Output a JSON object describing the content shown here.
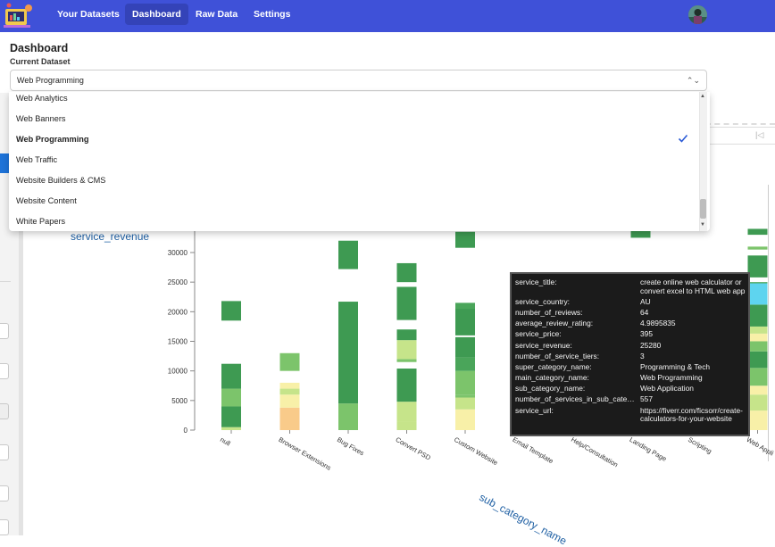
{
  "nav": {
    "items": [
      {
        "label": "Your Datasets",
        "active": false
      },
      {
        "label": "Dashboard",
        "active": true
      },
      {
        "label": "Raw Data",
        "active": false
      },
      {
        "label": "Settings",
        "active": false
      }
    ],
    "logo_icon": "app-logo-icon",
    "avatar_icon": "user-avatar-icon",
    "colors": {
      "navbar": "#3f51d8",
      "active_item": "#3443b8"
    }
  },
  "page": {
    "title": "Dashboard",
    "dataset_label": "Current Dataset",
    "dataset_value": "Web Programming"
  },
  "dropdown": {
    "options": [
      "Web Analytics",
      "Web Banners",
      "Web Programming",
      "Web Traffic",
      "Website Builders & CMS",
      "Website Content",
      "White Papers"
    ],
    "selected": "Web Programming",
    "selected_icon": "checkmark-icon"
  },
  "right_panel": {
    "collapse_icon": "collapse-left-icon",
    "collapse_glyph": "|◁"
  },
  "chart_data": {
    "type": "bar",
    "stacked": true,
    "xlabel": "sub_category_name",
    "ylabel": "service_revenue",
    "ylim": [
      0,
      34000
    ],
    "yticks": [
      0,
      5000,
      10000,
      15000,
      20000,
      25000,
      30000
    ],
    "categories": [
      "null",
      "Browser Extensions",
      "Bug Fixes",
      "Convert PSD",
      "Custom Website",
      "Email Template",
      "Help/Consultation",
      "Landing Page",
      "Scripting",
      "Web Appli"
    ],
    "colors": [
      "#3e9a52",
      "#4aa55a",
      "#7cc46b",
      "#c6e48a",
      "#f8f0a8",
      "#f9cb8a",
      "#5ed4ef"
    ],
    "segments": [
      {
        "category": "null",
        "from": 0,
        "to": 500,
        "color": "#c6e48a"
      },
      {
        "category": "null",
        "from": 500,
        "to": 4000,
        "color": "#3e9a52"
      },
      {
        "category": "null",
        "from": 4000,
        "to": 7000,
        "color": "#7cc46b"
      },
      {
        "category": "null",
        "from": 7000,
        "to": 11200,
        "color": "#3e9a52"
      },
      {
        "category": "null",
        "from": 18500,
        "to": 21800,
        "color": "#3e9a52"
      },
      {
        "category": "Browser Extensions",
        "from": 0,
        "to": 3800,
        "color": "#f9cb8a"
      },
      {
        "category": "Browser Extensions",
        "from": 3800,
        "to": 6000,
        "color": "#f8f0a8"
      },
      {
        "category": "Browser Extensions",
        "from": 6000,
        "to": 7000,
        "color": "#c6e48a"
      },
      {
        "category": "Browser Extensions",
        "from": 7000,
        "to": 8000,
        "color": "#f8f0a8"
      },
      {
        "category": "Browser Extensions",
        "from": 10000,
        "to": 13000,
        "color": "#7cc46b"
      },
      {
        "category": "Bug Fixes",
        "from": 0,
        "to": 4500,
        "color": "#7cc46b"
      },
      {
        "category": "Bug Fixes",
        "from": 4500,
        "to": 21700,
        "color": "#3e9a52"
      },
      {
        "category": "Bug Fixes",
        "from": 27200,
        "to": 32000,
        "color": "#3e9a52"
      },
      {
        "category": "Convert PSD",
        "from": 0,
        "to": 1500,
        "color": "#c6e48a"
      },
      {
        "category": "Convert PSD",
        "from": 1500,
        "to": 4800,
        "color": "#c6e48a"
      },
      {
        "category": "Convert PSD",
        "from": 4800,
        "to": 10400,
        "color": "#3e9a52"
      },
      {
        "category": "Convert PSD",
        "from": 11500,
        "to": 12000,
        "color": "#7cc46b"
      },
      {
        "category": "Convert PSD",
        "from": 12000,
        "to": 15200,
        "color": "#c6e48a"
      },
      {
        "category": "Convert PSD",
        "from": 15200,
        "to": 17000,
        "color": "#3e9a52"
      },
      {
        "category": "Convert PSD",
        "from": 18600,
        "to": 24200,
        "color": "#3e9a52"
      },
      {
        "category": "Convert PSD",
        "from": 25000,
        "to": 28200,
        "color": "#3e9a52"
      },
      {
        "category": "Custom Website",
        "from": 0,
        "to": 3500,
        "color": "#f8f0a8"
      },
      {
        "category": "Custom Website",
        "from": 3500,
        "to": 5500,
        "color": "#c6e48a"
      },
      {
        "category": "Custom Website",
        "from": 5500,
        "to": 6000,
        "color": "#7cc46b"
      },
      {
        "category": "Custom Website",
        "from": 6000,
        "to": 10000,
        "color": "#7cc46b"
      },
      {
        "category": "Custom Website",
        "from": 10000,
        "to": 12300,
        "color": "#4aa55a"
      },
      {
        "category": "Custom Website",
        "from": 12300,
        "to": 15700,
        "color": "#3e9a52"
      },
      {
        "category": "Custom Website",
        "from": 16000,
        "to": 20500,
        "color": "#3e9a52"
      },
      {
        "category": "Custom Website",
        "from": 20500,
        "to": 21500,
        "color": "#4aa55a"
      },
      {
        "category": "Custom Website",
        "from": 30800,
        "to": 33500,
        "color": "#3e9a52"
      },
      {
        "category": "Landing Page",
        "from": 32500,
        "to": 34000,
        "color": "#3e9a52"
      },
      {
        "category": "Web Appli",
        "from": 0,
        "to": 3300,
        "color": "#f8f0a8"
      },
      {
        "category": "Web Appli",
        "from": 3300,
        "to": 6000,
        "color": "#c6e48a"
      },
      {
        "category": "Web Appli",
        "from": 6000,
        "to": 7500,
        "color": "#f8f0a8"
      },
      {
        "category": "Web Appli",
        "from": 7500,
        "to": 10500,
        "color": "#7cc46b"
      },
      {
        "category": "Web Appli",
        "from": 10500,
        "to": 13300,
        "color": "#3e9a52"
      },
      {
        "category": "Web Appli",
        "from": 13300,
        "to": 15000,
        "color": "#7cc46b"
      },
      {
        "category": "Web Appli",
        "from": 15000,
        "to": 16300,
        "color": "#f8f0a8"
      },
      {
        "category": "Web Appli",
        "from": 16300,
        "to": 17500,
        "color": "#c6e48a"
      },
      {
        "category": "Web Appli",
        "from": 17500,
        "to": 21200,
        "color": "#3e9a52"
      },
      {
        "category": "Web Appli",
        "from": 21200,
        "to": 24800,
        "color": "#5ed4ef"
      },
      {
        "category": "Web Appli",
        "from": 24800,
        "to": 25000,
        "color": "#4aa55a"
      },
      {
        "category": "Web Appli",
        "from": 25800,
        "to": 29500,
        "color": "#3e9a52"
      },
      {
        "category": "Web Appli",
        "from": 30500,
        "to": 31000,
        "color": "#7cc46b"
      },
      {
        "category": "Web Appli",
        "from": 33000,
        "to": 34000,
        "color": "#3e9a52"
      }
    ]
  },
  "tooltip": {
    "rows": [
      {
        "key": "service_title:",
        "value": "create online web calculator or convert excel to HTML web app"
      },
      {
        "key": "service_country:",
        "value": "AU"
      },
      {
        "key": "number_of_reviews:",
        "value": "64"
      },
      {
        "key": "average_review_rating:",
        "value": "4.9895835"
      },
      {
        "key": "service_price:",
        "value": "395"
      },
      {
        "key": "service_revenue:",
        "value": "25280"
      },
      {
        "key": "number_of_service_tiers:",
        "value": "3"
      },
      {
        "key": "super_category_name:",
        "value": "Programming & Tech"
      },
      {
        "key": "main_category_name:",
        "value": "Web Programming"
      },
      {
        "key": "sub_category_name:",
        "value": "Web Application"
      },
      {
        "key": "number_of_services_in_sub_cate…",
        "value": "557"
      },
      {
        "key": "service_url:",
        "value": "https://fiverr.com/ficsorr/create-calculators-for-your-website"
      }
    ]
  }
}
